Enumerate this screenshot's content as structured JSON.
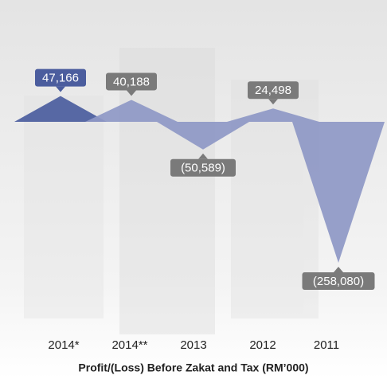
{
  "chart_data": {
    "type": "triangle",
    "title": "Profit/(Loss) Before Zakat and Tax (RM’000)",
    "categories": [
      "2014*",
      "2014**",
      "2013",
      "2012",
      "2011"
    ],
    "values": [
      47166,
      40188,
      -50589,
      24498,
      -258080
    ],
    "value_labels": [
      "47,166",
      "40,188",
      "(50,589)",
      "24,498",
      "(258,080)"
    ],
    "colors": [
      "#4b5d9e",
      "#8e98c6",
      "#8e98c6",
      "#8e98c6",
      "#8e98c6"
    ],
    "label_colors": [
      "#4b5d9e",
      "#7a7a7a",
      "#7a7a7a",
      "#7a7a7a",
      "#7a7a7a"
    ]
  }
}
